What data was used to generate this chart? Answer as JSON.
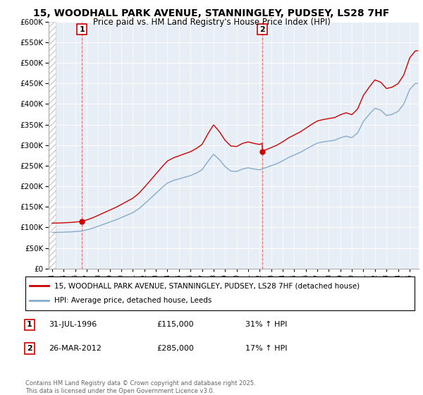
{
  "title": "15, WOODHALL PARK AVENUE, STANNINGLEY, PUDSEY, LS28 7HF",
  "subtitle": "Price paid vs. HM Land Registry's House Price Index (HPI)",
  "legend_line1": "15, WOODHALL PARK AVENUE, STANNINGLEY, PUDSEY, LS28 7HF (detached house)",
  "legend_line2": "HPI: Average price, detached house, Leeds",
  "footer": "Contains HM Land Registry data © Crown copyright and database right 2025.\nThis data is licensed under the Open Government Licence v3.0.",
  "sale1_label": "1",
  "sale1_date": "31-JUL-1996",
  "sale1_price": "£115,000",
  "sale1_hpi": "31% ↑ HPI",
  "sale2_label": "2",
  "sale2_date": "26-MAR-2012",
  "sale2_price": "£285,000",
  "sale2_hpi": "17% ↑ HPI",
  "sale1_x": 1996.58,
  "sale1_y": 115000,
  "sale2_x": 2012.23,
  "sale2_y": 285000,
  "ylim": [
    0,
    600000
  ],
  "xlim_start": 1993.7,
  "xlim_end": 2025.8,
  "red_color": "#cc0000",
  "blue_color": "#88aacc",
  "plot_bg_color": "#e8eef5",
  "hatch_color": "#cccccc",
  "background_color": "#ffffff",
  "grid_color": "#ffffff",
  "vline_color": "#dd6666",
  "title_fontsize": 10,
  "subtitle_fontsize": 8.5,
  "years_hpi": [
    1994,
    1994.5,
    1995,
    1995.5,
    1996,
    1996.5,
    1997,
    1997.5,
    1998,
    1998.5,
    1999,
    1999.5,
    2000,
    2000.5,
    2001,
    2001.5,
    2002,
    2002.5,
    2003,
    2003.5,
    2004,
    2004.5,
    2005,
    2005.5,
    2006,
    2006.5,
    2007,
    2007.5,
    2008,
    2008.5,
    2009,
    2009.5,
    2010,
    2010.5,
    2011,
    2011.5,
    2012,
    2012.5,
    2013,
    2013.5,
    2014,
    2014.5,
    2015,
    2015.5,
    2016,
    2016.5,
    2017,
    2017.5,
    2018,
    2018.5,
    2019,
    2019.5,
    2020,
    2020.5,
    2021,
    2021.5,
    2022,
    2022.5,
    2023,
    2023.5,
    2024,
    2024.5,
    2025,
    2025.5
  ],
  "hpi_vals": [
    88000,
    88000,
    88500,
    89000,
    90000,
    91000,
    94000,
    98000,
    103000,
    108000,
    113000,
    118000,
    124000,
    130000,
    136000,
    145000,
    157000,
    170000,
    183000,
    196000,
    208000,
    214000,
    218000,
    222000,
    226000,
    232000,
    240000,
    260000,
    278000,
    265000,
    248000,
    237000,
    236000,
    242000,
    245000,
    242000,
    240000,
    245000,
    250000,
    255000,
    262000,
    270000,
    276000,
    282000,
    290000,
    298000,
    305000,
    308000,
    310000,
    312000,
    318000,
    322000,
    318000,
    330000,
    358000,
    375000,
    390000,
    385000,
    372000,
    375000,
    382000,
    400000,
    435000,
    450000
  ]
}
